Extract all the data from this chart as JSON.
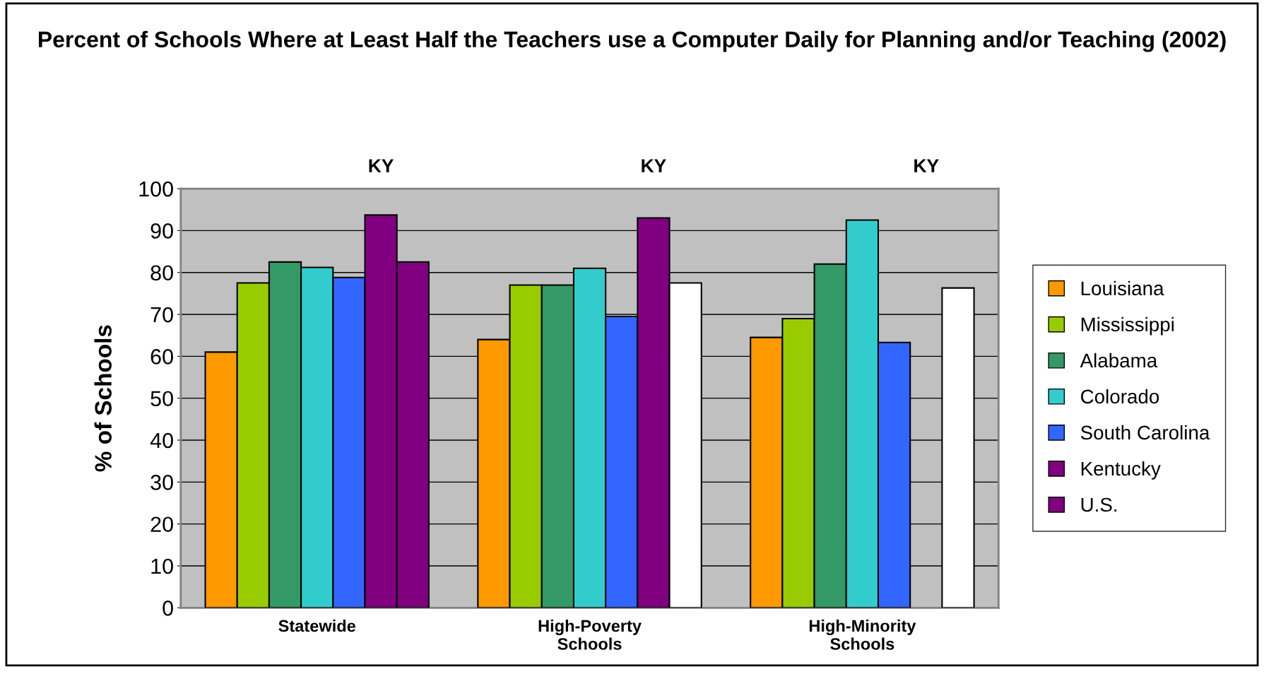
{
  "chart_data": {
    "type": "bar",
    "title": "Percent of Schools Where at Least Half the Teachers use a Computer Daily for Planning and/or Teaching (2002)",
    "ylabel": "% of Schools",
    "categories": [
      "Statewide",
      "High-Poverty Schools",
      "High-Minority Schools"
    ],
    "series": [
      {
        "name": "Louisiana",
        "color": "#ff9900",
        "values": [
          61,
          64,
          64.5
        ]
      },
      {
        "name": "Mississippi",
        "color": "#99cc00",
        "values": [
          77.5,
          77,
          69
        ]
      },
      {
        "name": "Alabama",
        "color": "#339966",
        "values": [
          82.5,
          77,
          82
        ]
      },
      {
        "name": "Colorado",
        "color": "#33cccc",
        "values": [
          81.2,
          81,
          92.5
        ]
      },
      {
        "name": "South Carolina",
        "color": "#3366ff",
        "values": [
          78.8,
          69.5,
          63.3
        ]
      },
      {
        "name": "Kentucky",
        "color": "#800080",
        "values": [
          93.7,
          93,
          null
        ]
      },
      {
        "name": "U.S.",
        "color": "#800080",
        "colors": [
          "#800080",
          "#ffffff",
          "#ffffff"
        ],
        "values": [
          82.5,
          77.5,
          76.3
        ]
      }
    ],
    "ylim": [
      0,
      100
    ],
    "yticks": [
      0,
      10,
      20,
      30,
      40,
      50,
      60,
      70,
      80,
      90,
      100
    ],
    "grid": "y",
    "legend": "right",
    "annotations": [
      "KY",
      "KY",
      "KY"
    ]
  }
}
